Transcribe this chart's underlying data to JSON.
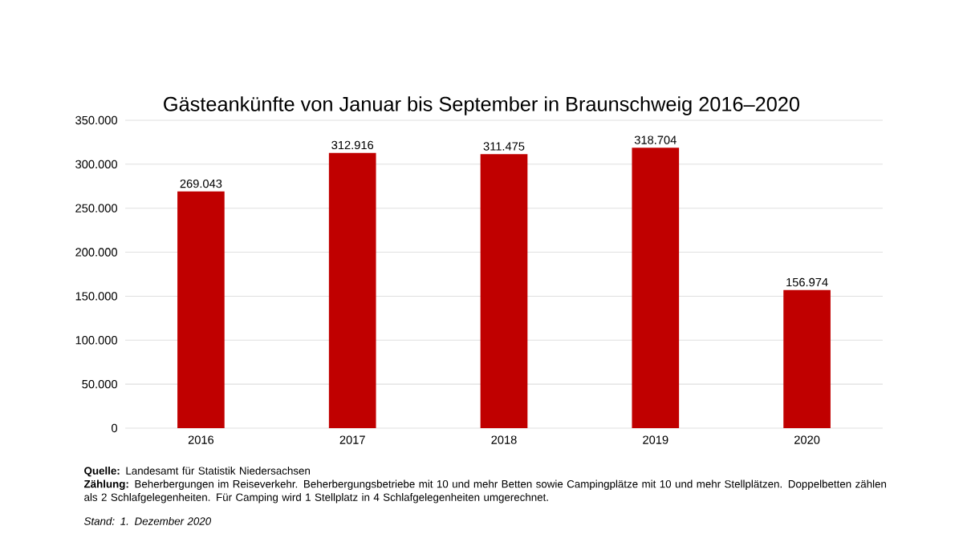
{
  "chart_data": {
    "type": "bar",
    "title": "Gästeankünfte von Januar bis September in Braunschweig 2016–2020",
    "categories": [
      "2016",
      "2017",
      "2018",
      "2019",
      "2020"
    ],
    "values": [
      269043,
      312916,
      311475,
      318704,
      156974
    ],
    "value_labels": [
      "269.043",
      "312.916",
      "311.475",
      "318.704",
      "156.974"
    ],
    "color": "#c00000",
    "ylim": [
      0,
      350000
    ],
    "yticks": [
      {
        "value": 0,
        "label": "0"
      },
      {
        "value": 50000,
        "label": "50.000"
      },
      {
        "value": 100000,
        "label": "100.000"
      },
      {
        "value": 150000,
        "label": "150.000"
      },
      {
        "value": 200000,
        "label": "200.000"
      },
      {
        "value": 250000,
        "label": "250.000"
      },
      {
        "value": 300000,
        "label": "300.000"
      },
      {
        "value": 350000,
        "label": "350.000"
      }
    ],
    "grid": "y",
    "annotations": [
      "**Quelle:** Landesamt für Statistik Niedersachsen",
      "**Zählung:** Beherbergungen im Reiseverkehr. Beherbergungsbetriebe mit 10 und mehr Betten sowie Campingplätze mit 10 und mehr Stellplätzen. Doppelbetten zählen als 2 Schlafgelegenheiten. Für Camping wird 1 Stellplatz in 4 Schlafgelegenheiten umgerechnet.",
      "Stand: 1. Dezember 2020"
    ]
  }
}
